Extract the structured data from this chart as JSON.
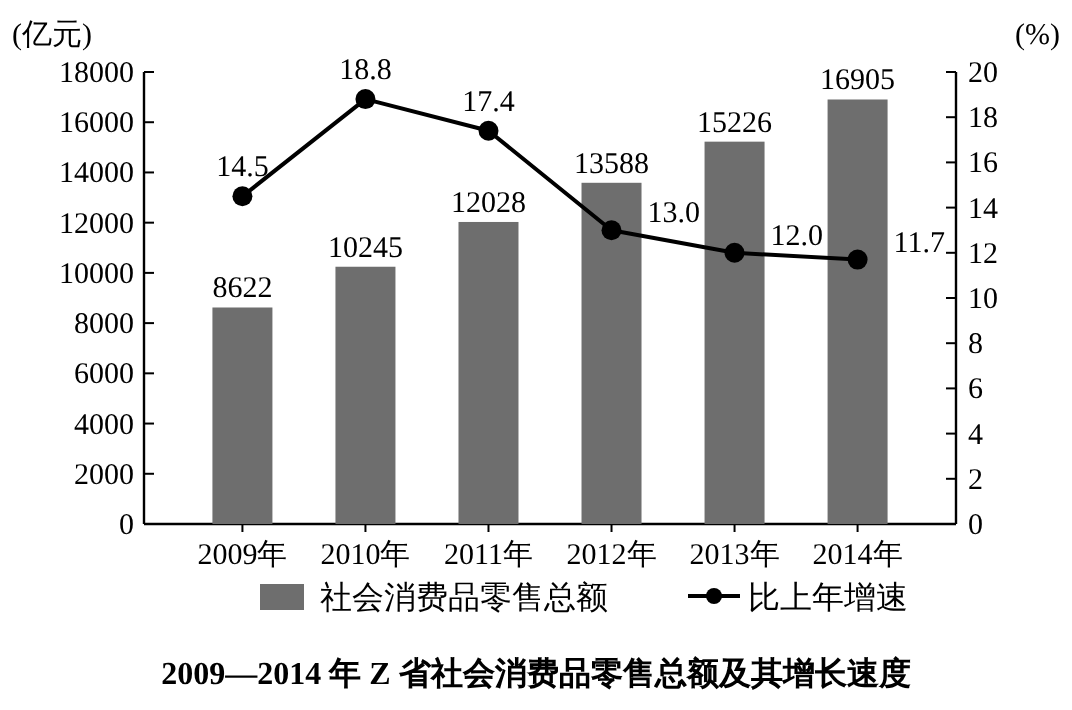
{
  "chart_data": {
    "type": "bar",
    "title": "2009—2014 年 Z 省社会消费品零售总额及其增长速度",
    "ylabel": "(亿元)",
    "y2label": "(%)",
    "categories": [
      "2009年",
      "2010年",
      "2011年",
      "2012年",
      "2013年",
      "2014年"
    ],
    "series": [
      {
        "name": "社会消费品零售总额",
        "color": "#6e6e6e",
        "values": [
          8622,
          10245,
          12028,
          13588,
          15226,
          16905
        ]
      },
      {
        "name": "比上年增速",
        "type": "line",
        "axis": "y2",
        "color": "#000000",
        "marker": "circle",
        "values": [
          14.5,
          18.8,
          17.4,
          13.0,
          12.0,
          11.7
        ],
        "value_labels": [
          "14.5",
          "18.8",
          "17.4",
          "13.0",
          "12.0",
          "11.7"
        ]
      }
    ],
    "ylim": [
      0,
      18000
    ],
    "yticks": [
      0,
      2000,
      4000,
      6000,
      8000,
      10000,
      12000,
      14000,
      16000,
      18000
    ],
    "y2lim": [
      0,
      20
    ],
    "y2ticks": [
      0,
      2,
      4,
      6,
      8,
      10,
      12,
      14,
      16,
      18,
      20
    ],
    "data_labels": true,
    "legend": "bottom"
  }
}
